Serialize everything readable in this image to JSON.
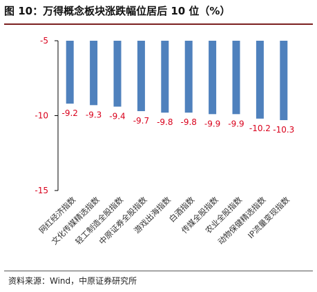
{
  "figure": {
    "title": "图 10：万得概念板块涨跌幅位居后 10 位（%）",
    "source": "资料来源：Wind，中原证券研究所"
  },
  "chart_data": {
    "type": "bar",
    "title": "",
    "xlabel": "",
    "ylabel": "",
    "categories": [
      "网红经济指数",
      "文化传媒精选指数",
      "轻工制造全股指数",
      "中原证券全股指数",
      "游戏出海指数",
      "白酒指数",
      "传媒全股指数",
      "农业全股指数",
      "动物保健精选指数",
      "IP流量变现指数"
    ],
    "values": [
      -9.2,
      -9.3,
      -9.4,
      -9.7,
      -9.8,
      -9.8,
      -9.9,
      -9.9,
      -10.2,
      -10.3
    ],
    "value_labels": [
      "-9.2",
      "-9.3",
      "-9.4",
      "-9.7",
      "-9.8",
      "-9.8",
      "-9.9",
      "-9.9",
      "-10.2",
      "-10.3"
    ],
    "ylim": [
      -15,
      -5
    ],
    "yticks": [
      -5,
      -10,
      -15
    ],
    "ytick_labels": [
      "-5",
      "-10",
      "-15"
    ],
    "bar_color": "#4f81bd",
    "label_color": "#d9001b",
    "grid": false,
    "legend": "none"
  }
}
